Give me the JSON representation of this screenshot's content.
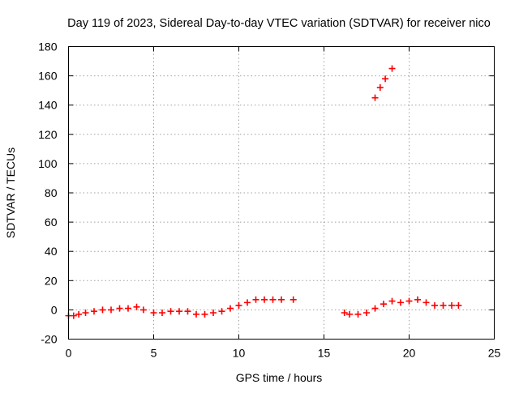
{
  "chart_data": {
    "type": "scatter",
    "title": "Day 119 of 2023, Sidereal Day-to-day VTEC variation (SDTVAR) for receiver nico",
    "xlabel": "GPS time / hours",
    "ylabel": "SDTVAR / TECUs",
    "xlim": [
      0,
      25
    ],
    "ylim": [
      -20,
      180
    ],
    "x_ticks": [
      0,
      5,
      10,
      15,
      20,
      25
    ],
    "y_ticks": [
      -20,
      0,
      20,
      40,
      60,
      80,
      100,
      120,
      140,
      160,
      180
    ],
    "x_tick_labels": [
      "0",
      "5",
      "10",
      "15",
      "20",
      "25"
    ],
    "y_tick_labels": [
      "-20",
      "0",
      "20",
      "40",
      "60",
      "80",
      "100",
      "120",
      "140",
      "160",
      "180"
    ],
    "grid": true,
    "marker": "plus",
    "color": "#ff0000",
    "series": [
      {
        "name": "SDTVAR",
        "x": [
          0.0,
          0.3,
          0.6,
          1.0,
          1.5,
          2.0,
          2.5,
          3.0,
          3.5,
          4.0,
          4.4,
          5.0,
          5.5,
          6.0,
          6.5,
          7.0,
          7.5,
          8.0,
          8.5,
          9.0,
          9.5,
          10.0,
          10.5,
          11.0,
          11.5,
          12.0,
          12.5,
          13.2,
          16.2,
          16.5,
          17.0,
          17.5,
          18.0,
          18.5,
          19.0,
          19.5,
          20.0,
          20.5,
          21.0,
          21.5,
          22.0,
          22.5,
          22.9,
          18.0,
          18.3,
          18.6,
          19.0
        ],
        "y": [
          -4,
          -4,
          -3,
          -2,
          -1,
          0,
          0,
          1,
          1,
          2,
          0,
          -2,
          -2,
          -1,
          -1,
          -1,
          -3,
          -3,
          -2,
          -1,
          1,
          3,
          5,
          7,
          7,
          7,
          7,
          7,
          -2,
          -3,
          -3,
          -2,
          1,
          4,
          6,
          5,
          6,
          7,
          5,
          3,
          3,
          3,
          3,
          145,
          152,
          158,
          165
        ]
      }
    ]
  }
}
